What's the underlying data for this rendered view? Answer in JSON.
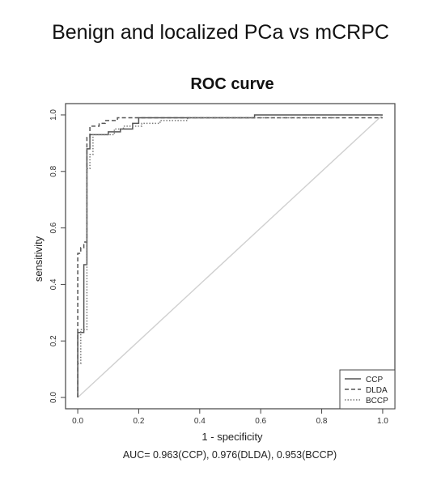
{
  "figure": {
    "header": "Benign and localized PCa vs mCRPC",
    "footnote": "AUC= 0.963(CCP), 0.976(DLDA), 0.953(BCCP)"
  },
  "chart_data": {
    "type": "line",
    "title": "ROC curve",
    "xlabel": "1 - specificity",
    "ylabel": "sensitivity",
    "xlim": [
      0,
      1
    ],
    "ylim": [
      0,
      1
    ],
    "xticks": [
      "0.0",
      "0.2",
      "0.4",
      "0.6",
      "0.8",
      "1.0"
    ],
    "yticks": [
      "0.0",
      "0.2",
      "0.4",
      "0.6",
      "0.8",
      "1.0"
    ],
    "grid": false,
    "legend_position": "bottom-right",
    "reference_line": {
      "from": [
        0,
        0
      ],
      "to": [
        1,
        1
      ],
      "color": "#d0d0d0"
    },
    "series": [
      {
        "name": "CCP",
        "style": "solid",
        "color": "#555555",
        "x": [
          0,
          0,
          0.02,
          0.02,
          0.03,
          0.03,
          0.04,
          0.04,
          0.1,
          0.1,
          0.14,
          0.14,
          0.18,
          0.18,
          0.2,
          0.2,
          0.58,
          0.58,
          1.0
        ],
        "y": [
          0,
          0.23,
          0.23,
          0.47,
          0.47,
          0.88,
          0.88,
          0.93,
          0.93,
          0.94,
          0.94,
          0.95,
          0.95,
          0.97,
          0.97,
          0.99,
          0.99,
          1.0,
          1.0
        ]
      },
      {
        "name": "DLDA",
        "style": "dashed",
        "color": "#555555",
        "x": [
          0,
          0,
          0.01,
          0.01,
          0.02,
          0.02,
          0.03,
          0.03,
          0.04,
          0.04,
          0.07,
          0.07,
          0.09,
          0.09,
          0.13,
          0.13,
          1.0
        ],
        "y": [
          0,
          0.51,
          0.51,
          0.53,
          0.53,
          0.55,
          0.55,
          0.92,
          0.92,
          0.96,
          0.96,
          0.97,
          0.97,
          0.98,
          0.98,
          0.99,
          0.99
        ]
      },
      {
        "name": "BCCP",
        "style": "dotted",
        "color": "#777777",
        "x": [
          0,
          0.01,
          0.01,
          0.03,
          0.03,
          0.04,
          0.04,
          0.05,
          0.05,
          0.12,
          0.12,
          0.15,
          0.15,
          0.21,
          0.21,
          0.27,
          0.27,
          0.36,
          0.36,
          0.85
        ],
        "y": [
          0.12,
          0.12,
          0.24,
          0.24,
          0.81,
          0.81,
          0.86,
          0.86,
          0.93,
          0.93,
          0.95,
          0.95,
          0.96,
          0.96,
          0.97,
          0.97,
          0.98,
          0.98,
          0.99,
          0.99
        ]
      }
    ]
  }
}
